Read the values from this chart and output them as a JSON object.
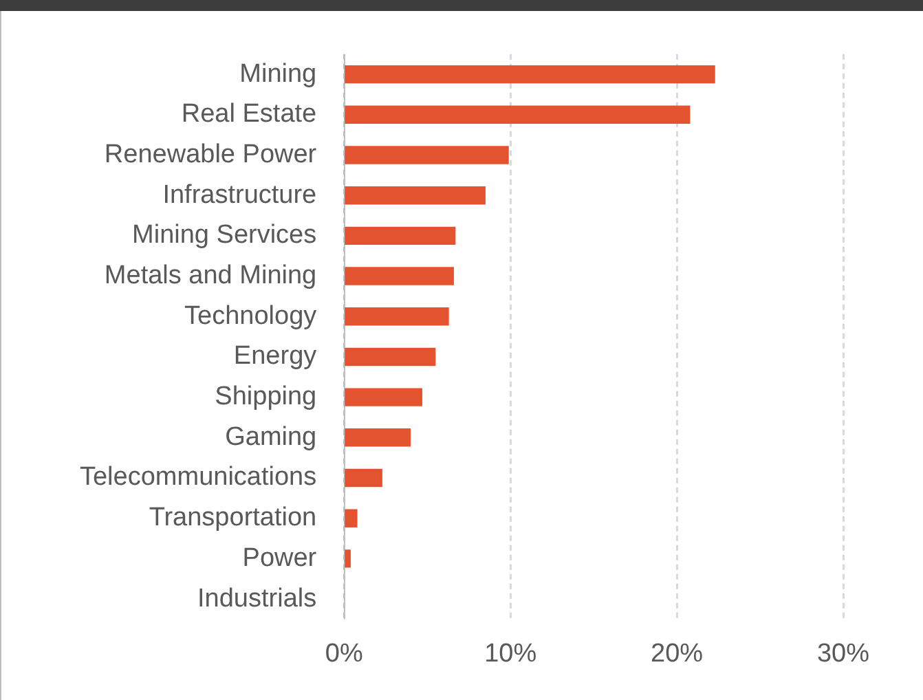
{
  "chart_data": {
    "type": "bar",
    "orientation": "horizontal",
    "categories": [
      "Mining",
      "Real Estate",
      "Renewable Power",
      "Infrastructure",
      "Mining Services",
      "Metals and Mining",
      "Technology",
      "Energy",
      "Shipping",
      "Gaming",
      "Telecommunications",
      "Transportation",
      "Power",
      "Industrials"
    ],
    "values": [
      22.3,
      20.8,
      9.9,
      8.5,
      6.7,
      6.6,
      6.3,
      5.5,
      4.7,
      4.0,
      2.3,
      0.8,
      0.4,
      0
    ],
    "color": "#e4532f",
    "xlim": [
      0,
      30
    ],
    "xticks": [
      {
        "value": 0,
        "label": "0%"
      },
      {
        "value": 10,
        "label": "10%"
      },
      {
        "value": 20,
        "label": "20%"
      },
      {
        "value": 30,
        "label": "30%"
      }
    ],
    "grid": "x",
    "legend": false
  }
}
